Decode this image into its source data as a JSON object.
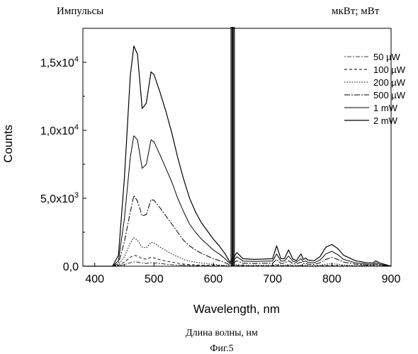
{
  "top_left_label": "Импульсы",
  "top_right_label": "мкВт; мВт",
  "caption_axis": "Длина волны, нм",
  "caption_fig": "Фиг.5",
  "chart_data": {
    "type": "line",
    "xlabel": "Wavelength, nm",
    "ylabel": "Counts",
    "xlim": [
      380,
      900
    ],
    "ylim": [
      0,
      17500
    ],
    "xticks": [
      400,
      500,
      600,
      700,
      800,
      900
    ],
    "xtick_labels": [
      "400",
      "500",
      "600",
      "700",
      "800",
      "900"
    ],
    "yticks": [
      0,
      5000,
      10000,
      15000
    ],
    "ytick_labels": [
      {
        "mantissa": "0,0",
        "exp": ""
      },
      {
        "mantissa": "5,0x10",
        "exp": "3"
      },
      {
        "mantissa": "1,0x10",
        "exp": "4"
      },
      {
        "mantissa": "1,5x10",
        "exp": "4"
      }
    ],
    "grid": false,
    "legend_position": "top-right",
    "laser_line_nm": 632.8,
    "x": [
      380,
      430,
      440,
      450,
      460,
      466,
      472,
      480,
      487,
      495,
      500,
      510,
      520,
      530,
      540,
      550,
      560,
      570,
      580,
      590,
      600,
      610,
      620,
      628,
      640,
      650,
      670,
      700,
      707,
      714,
      720,
      727,
      734,
      740,
      748,
      752,
      756,
      760,
      770,
      780,
      790,
      800,
      810,
      820,
      840,
      860,
      870,
      874,
      880,
      900
    ],
    "series": [
      {
        "name": "50 µW",
        "dash": "2,2,6,2",
        "values": [
          0,
          0,
          40,
          120,
          260,
          320,
          300,
          230,
          200,
          260,
          250,
          200,
          150,
          110,
          80,
          60,
          50,
          40,
          30,
          25,
          20,
          15,
          10,
          5,
          20,
          10,
          10,
          10,
          25,
          10,
          10,
          20,
          10,
          10,
          15,
          10,
          10,
          5,
          5,
          10,
          15,
          15,
          15,
          10,
          5,
          5,
          5,
          5,
          5,
          0
        ]
      },
      {
        "name": "100 µW",
        "dash": "4,3",
        "values": [
          0,
          0,
          60,
          300,
          650,
          800,
          750,
          560,
          520,
          650,
          620,
          480,
          380,
          300,
          220,
          160,
          120,
          100,
          80,
          60,
          50,
          40,
          25,
          10,
          50,
          25,
          25,
          25,
          60,
          25,
          25,
          50,
          25,
          20,
          40,
          25,
          25,
          15,
          15,
          30,
          50,
          60,
          50,
          30,
          15,
          10,
          10,
          15,
          10,
          0
        ]
      },
      {
        "name": "200 µW",
        "dash": "1.5,2",
        "values": [
          0,
          0,
          100,
          700,
          1700,
          2100,
          1900,
          1400,
          1350,
          1750,
          1700,
          1400,
          1150,
          900,
          700,
          500,
          380,
          300,
          240,
          180,
          130,
          100,
          60,
          25,
          120,
          60,
          60,
          60,
          150,
          60,
          60,
          120,
          60,
          40,
          80,
          50,
          60,
          40,
          40,
          80,
          150,
          180,
          150,
          90,
          40,
          25,
          25,
          40,
          25,
          0
        ]
      },
      {
        "name": "500 µW",
        "dash": "8,2,2,2",
        "values": [
          0,
          0,
          200,
          1800,
          4000,
          5200,
          4800,
          3700,
          3800,
          4900,
          4850,
          4300,
          3700,
          3100,
          2500,
          1900,
          1500,
          1200,
          950,
          750,
          550,
          420,
          250,
          100,
          400,
          220,
          200,
          220,
          500,
          200,
          220,
          400,
          200,
          150,
          300,
          180,
          200,
          150,
          130,
          250,
          500,
          650,
          500,
          300,
          150,
          80,
          80,
          150,
          80,
          0
        ]
      },
      {
        "name": "1 mW",
        "dash": "",
        "values": [
          0,
          0,
          400,
          3500,
          8000,
          9600,
          9300,
          7200,
          7500,
          9300,
          9150,
          8200,
          7200,
          6200,
          5000,
          4000,
          3100,
          2500,
          2000,
          1600,
          1200,
          900,
          550,
          200,
          700,
          380,
          350,
          380,
          900,
          380,
          380,
          750,
          380,
          280,
          550,
          330,
          380,
          280,
          250,
          450,
          900,
          1100,
          850,
          500,
          250,
          150,
          150,
          250,
          150,
          0
        ]
      },
      {
        "name": "2 mW",
        "dash": "",
        "values": [
          0,
          0,
          800,
          6500,
          14000,
          16200,
          15600,
          11600,
          12000,
          14300,
          14100,
          12800,
          11400,
          9800,
          8000,
          6400,
          5000,
          4000,
          3200,
          2600,
          2000,
          1500,
          900,
          300,
          1000,
          550,
          500,
          550,
          1500,
          550,
          550,
          1200,
          550,
          400,
          900,
          500,
          600,
          450,
          400,
          700,
          1400,
          1600,
          1300,
          800,
          400,
          250,
          250,
          400,
          250,
          0
        ]
      }
    ]
  }
}
